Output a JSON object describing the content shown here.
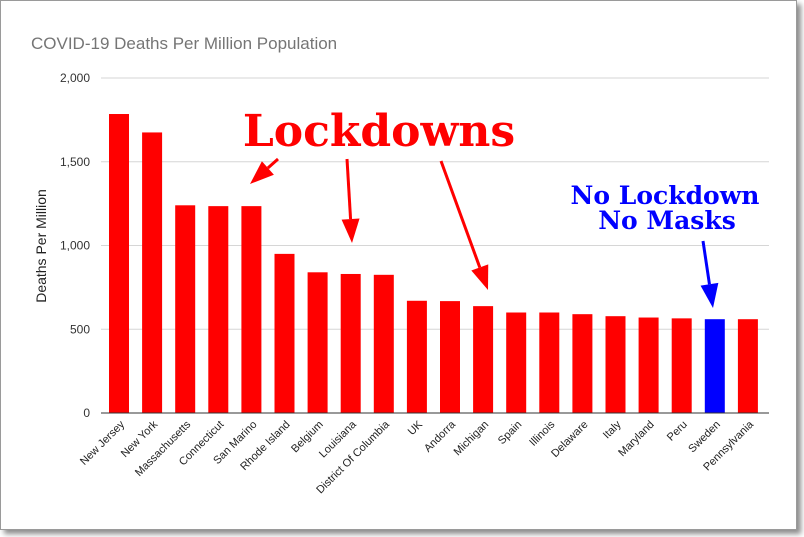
{
  "chart_data": {
    "type": "bar",
    "title": "COVID-19 Deaths Per Million Population",
    "ylabel": "Deaths Per Million",
    "xlabel": "",
    "ylim": [
      0,
      2000
    ],
    "yticks": [
      0,
      500,
      1000,
      1500,
      2000
    ],
    "ytick_labels": [
      "0",
      "500",
      "1,000",
      "1,500",
      "2,000"
    ],
    "grid": true,
    "categories": [
      "New Jersey",
      "New York",
      "Massachusetts",
      "Connecticut",
      "San Marino",
      "Rhode Island",
      "Belgium",
      "Louisiana",
      "District Of Columbia",
      "UK",
      "Andorra",
      "Michigan",
      "Spain",
      "Illinois",
      "Delaware",
      "Italy",
      "Maryland",
      "Peru",
      "Sweden",
      "Pennsylvania"
    ],
    "values": [
      1785,
      1675,
      1240,
      1235,
      1235,
      950,
      840,
      830,
      825,
      670,
      668,
      638,
      600,
      600,
      590,
      578,
      570,
      565,
      560,
      560
    ],
    "bar_colors": [
      "#ff0000",
      "#ff0000",
      "#ff0000",
      "#ff0000",
      "#ff0000",
      "#ff0000",
      "#ff0000",
      "#ff0000",
      "#ff0000",
      "#ff0000",
      "#ff0000",
      "#ff0000",
      "#ff0000",
      "#ff0000",
      "#ff0000",
      "#ff0000",
      "#ff0000",
      "#ff0000",
      "#0000ff",
      "#ff0000"
    ],
    "annotations": [
      {
        "text": "Lockdowns",
        "color": "#ff0000",
        "targets": [
          "San Marino",
          "Louisiana",
          "Michigan"
        ]
      },
      {
        "text_lines": [
          "No Lockdown",
          "No Masks"
        ],
        "color": "#0000ff",
        "targets": [
          "Sweden"
        ]
      }
    ]
  }
}
